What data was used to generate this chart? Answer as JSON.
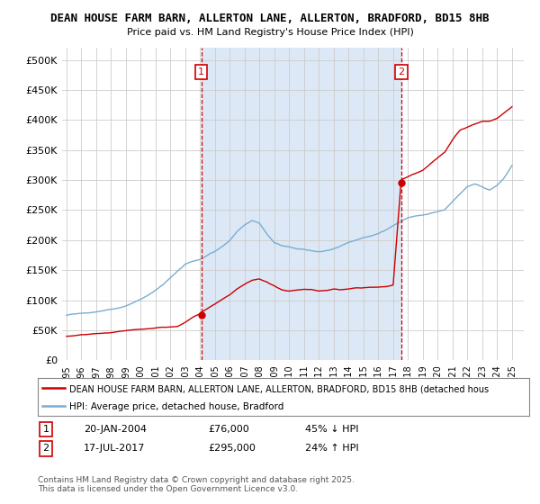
{
  "title": "DEAN HOUSE FARM BARN, ALLERTON LANE, ALLERTON, BRADFORD, BD15 8HB",
  "subtitle": "Price paid vs. HM Land Registry's House Price Index (HPI)",
  "ylim": [
    0,
    520000
  ],
  "yticks": [
    0,
    50000,
    100000,
    150000,
    200000,
    250000,
    300000,
    350000,
    400000,
    450000,
    500000
  ],
  "ytick_labels": [
    "£0",
    "£50K",
    "£100K",
    "£150K",
    "£200K",
    "£250K",
    "£300K",
    "£350K",
    "£400K",
    "£450K",
    "£500K"
  ],
  "background_color": "#ffffff",
  "plot_bg_color": "#ffffff",
  "shade_color": "#dce8f5",
  "grid_color": "#cccccc",
  "red_color": "#cc0000",
  "blue_color": "#7aadcf",
  "transaction1_date": 2004.07,
  "transaction1_price": 76000,
  "transaction2_date": 2017.54,
  "transaction2_price": 295000,
  "legend_line1": "DEAN HOUSE FARM BARN, ALLERTON LANE, ALLERTON, BRADFORD, BD15 8HB (detached hous",
  "legend_line2": "HPI: Average price, detached house, Bradford",
  "footer1": "Contains HM Land Registry data © Crown copyright and database right 2025.",
  "footer2": "This data is licensed under the Open Government Licence v3.0.",
  "hpi_x": [
    1995.0,
    1995.5,
    1996.0,
    1996.5,
    1997.0,
    1997.5,
    1998.0,
    1998.5,
    1999.0,
    1999.5,
    2000.0,
    2000.5,
    2001.0,
    2001.5,
    2002.0,
    2002.5,
    2003.0,
    2003.5,
    2004.0,
    2004.5,
    2005.0,
    2005.5,
    2006.0,
    2006.5,
    2007.0,
    2007.5,
    2008.0,
    2008.5,
    2009.0,
    2009.5,
    2010.0,
    2010.5,
    2011.0,
    2011.5,
    2012.0,
    2012.5,
    2013.0,
    2013.5,
    2014.0,
    2014.5,
    2015.0,
    2015.5,
    2016.0,
    2016.5,
    2017.0,
    2017.5,
    2018.0,
    2018.5,
    2019.0,
    2019.5,
    2020.0,
    2020.5,
    2021.0,
    2021.5,
    2022.0,
    2022.5,
    2023.0,
    2023.5,
    2024.0,
    2024.5,
    2025.0
  ],
  "hpi_y": [
    75000,
    77000,
    79000,
    80000,
    82000,
    84000,
    86000,
    88000,
    92000,
    97000,
    103000,
    110000,
    118000,
    127000,
    138000,
    150000,
    160000,
    165000,
    168000,
    175000,
    182000,
    190000,
    200000,
    215000,
    225000,
    232000,
    228000,
    210000,
    195000,
    190000,
    188000,
    185000,
    183000,
    181000,
    180000,
    182000,
    185000,
    190000,
    196000,
    200000,
    205000,
    208000,
    212000,
    218000,
    225000,
    232000,
    238000,
    240000,
    242000,
    245000,
    248000,
    252000,
    265000,
    278000,
    290000,
    295000,
    290000,
    285000,
    292000,
    305000,
    325000
  ],
  "red_x": [
    1995.0,
    1995.5,
    1996.0,
    1996.5,
    1997.0,
    1997.5,
    1998.0,
    1998.5,
    1999.0,
    1999.5,
    2000.0,
    2000.5,
    2001.0,
    2001.5,
    2002.0,
    2002.5,
    2003.0,
    2003.5,
    2004.0,
    2004.07,
    2004.5,
    2005.0,
    2005.5,
    2006.0,
    2006.5,
    2007.0,
    2007.5,
    2008.0,
    2008.5,
    2009.0,
    2009.5,
    2010.0,
    2010.5,
    2011.0,
    2011.5,
    2012.0,
    2012.5,
    2013.0,
    2013.5,
    2014.0,
    2014.5,
    2015.0,
    2015.5,
    2016.0,
    2016.5,
    2017.0,
    2017.54,
    2018.0,
    2018.5,
    2019.0,
    2019.5,
    2020.0,
    2020.5,
    2021.0,
    2021.5,
    2022.0,
    2022.5,
    2023.0,
    2023.5,
    2024.0,
    2024.5,
    2025.0
  ],
  "red_y": [
    40000,
    41000,
    42000,
    43000,
    44000,
    44500,
    45000,
    46000,
    47000,
    48000,
    49000,
    50000,
    51000,
    52000,
    53000,
    54000,
    60000,
    68000,
    74000,
    76000,
    82000,
    90000,
    98000,
    105000,
    115000,
    122000,
    128000,
    130000,
    125000,
    118000,
    112000,
    110000,
    112000,
    113000,
    112000,
    110000,
    111000,
    113000,
    112000,
    113000,
    115000,
    115000,
    116000,
    117000,
    118000,
    120000,
    295000,
    300000,
    305000,
    310000,
    320000,
    330000,
    340000,
    360000,
    375000,
    380000,
    385000,
    390000,
    390000,
    395000,
    405000,
    415000
  ]
}
